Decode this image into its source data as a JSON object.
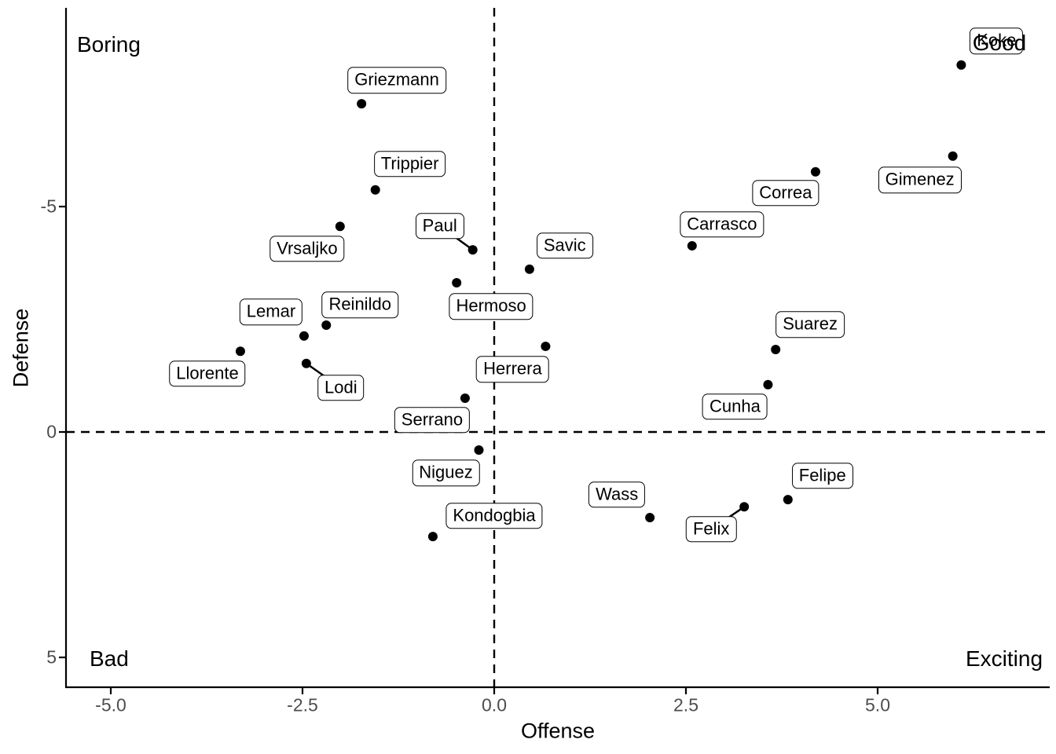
{
  "chart_data": {
    "type": "scatter",
    "title": "",
    "xlabel": "Offense",
    "ylabel": "Defense",
    "x_ticks": [
      {
        "value": -5.0,
        "label": "-5.0"
      },
      {
        "value": -2.5,
        "label": "-2.5"
      },
      {
        "value": 0.0,
        "label": "0.0"
      },
      {
        "value": 2.5,
        "label": "2.5"
      },
      {
        "value": 5.0,
        "label": "5.0"
      }
    ],
    "y_ticks": [
      {
        "value": -5,
        "label": "-5"
      },
      {
        "value": 0,
        "label": "0"
      },
      {
        "value": 5,
        "label": "5"
      }
    ],
    "axis_ranges": {
      "x": [
        -5.6,
        7.25
      ],
      "y": [
        -9.4,
        5.7
      ],
      "y_axis_reversed": true
    },
    "grid": "off",
    "legend": "none",
    "reference_lines": {
      "vertical_x": 0,
      "horizontal_y": 0,
      "style": "dashed"
    },
    "quadrant_labels": {
      "top_left": "Boring",
      "top_right": "Good",
      "bottom_left": "Bad",
      "bottom_right": "Exciting"
    },
    "points": [
      {
        "name": "Koke",
        "x": 6.09,
        "y": -8.14,
        "label_x": 6.55,
        "label_y": -8.67,
        "leader": false
      },
      {
        "name": "Griezmann",
        "x": -1.73,
        "y": -7.28,
        "label_x": -1.27,
        "label_y": -7.8,
        "leader": false
      },
      {
        "name": "Gimenez",
        "x": 5.98,
        "y": -6.12,
        "label_x": 5.55,
        "label_y": -5.59,
        "leader": false
      },
      {
        "name": "Correa",
        "x": 4.19,
        "y": -5.77,
        "label_x": 3.8,
        "label_y": -5.3,
        "leader": false
      },
      {
        "name": "Trippier",
        "x": -1.55,
        "y": -5.37,
        "label_x": -1.1,
        "label_y": -5.94,
        "leader": false
      },
      {
        "name": "Vrsaljko",
        "x": -2.01,
        "y": -4.56,
        "label_x": -2.44,
        "label_y": -4.06,
        "leader": false
      },
      {
        "name": "Paul",
        "x": -0.28,
        "y": -4.04,
        "label_x": -0.71,
        "label_y": -4.57,
        "leader": true
      },
      {
        "name": "Carrasco",
        "x": 2.58,
        "y": -4.13,
        "label_x": 2.97,
        "label_y": -4.6,
        "leader": false
      },
      {
        "name": "Savic",
        "x": 0.46,
        "y": -3.61,
        "label_x": 0.92,
        "label_y": -4.13,
        "leader": false
      },
      {
        "name": "Hermoso",
        "x": -0.49,
        "y": -3.31,
        "label_x": -0.04,
        "label_y": -2.78,
        "leader": false
      },
      {
        "name": "Reinildo",
        "x": -2.19,
        "y": -2.37,
        "label_x": -1.75,
        "label_y": -2.82,
        "leader": false
      },
      {
        "name": "Lemar",
        "x": -2.48,
        "y": -2.13,
        "label_x": -2.91,
        "label_y": -2.66,
        "leader": false
      },
      {
        "name": "Llorente",
        "x": -3.31,
        "y": -1.79,
        "label_x": -3.74,
        "label_y": -1.29,
        "leader": false
      },
      {
        "name": "Herrera",
        "x": 0.67,
        "y": -1.9,
        "label_x": 0.24,
        "label_y": -1.39,
        "leader": false
      },
      {
        "name": "Suarez",
        "x": 3.67,
        "y": -1.83,
        "label_x": 4.12,
        "label_y": -2.38,
        "leader": false
      },
      {
        "name": "Lodi",
        "x": -2.45,
        "y": -1.52,
        "label_x": -2.0,
        "label_y": -0.98,
        "leader": true
      },
      {
        "name": "Cunha",
        "x": 3.57,
        "y": -1.05,
        "label_x": 3.14,
        "label_y": -0.56,
        "leader": false
      },
      {
        "name": "Serrano",
        "x": -0.38,
        "y": -0.75,
        "label_x": -0.81,
        "label_y": -0.26,
        "leader": false
      },
      {
        "name": "Niguez",
        "x": -0.2,
        "y": 0.4,
        "label_x": -0.63,
        "label_y": 0.91,
        "leader": false
      },
      {
        "name": "Felipe",
        "x": 3.83,
        "y": 1.5,
        "label_x": 4.28,
        "label_y": 0.97,
        "leader": false
      },
      {
        "name": "Felix",
        "x": 3.26,
        "y": 1.66,
        "label_x": 2.83,
        "label_y": 2.16,
        "leader": true
      },
      {
        "name": "Wass",
        "x": 2.03,
        "y": 1.9,
        "label_x": 1.6,
        "label_y": 1.39,
        "leader": false
      },
      {
        "name": "Kondogbia",
        "x": -0.8,
        "y": 2.32,
        "label_x": 0.0,
        "label_y": 1.86,
        "leader": false
      }
    ]
  },
  "colors": {
    "background": "#ffffff",
    "point": "#000000",
    "axis_line": "#000000",
    "reference_line": "#000000",
    "tick_label": "#4d4d4d",
    "label_fill": "#ffffff",
    "label_border": "#000000",
    "text": "#000000"
  }
}
